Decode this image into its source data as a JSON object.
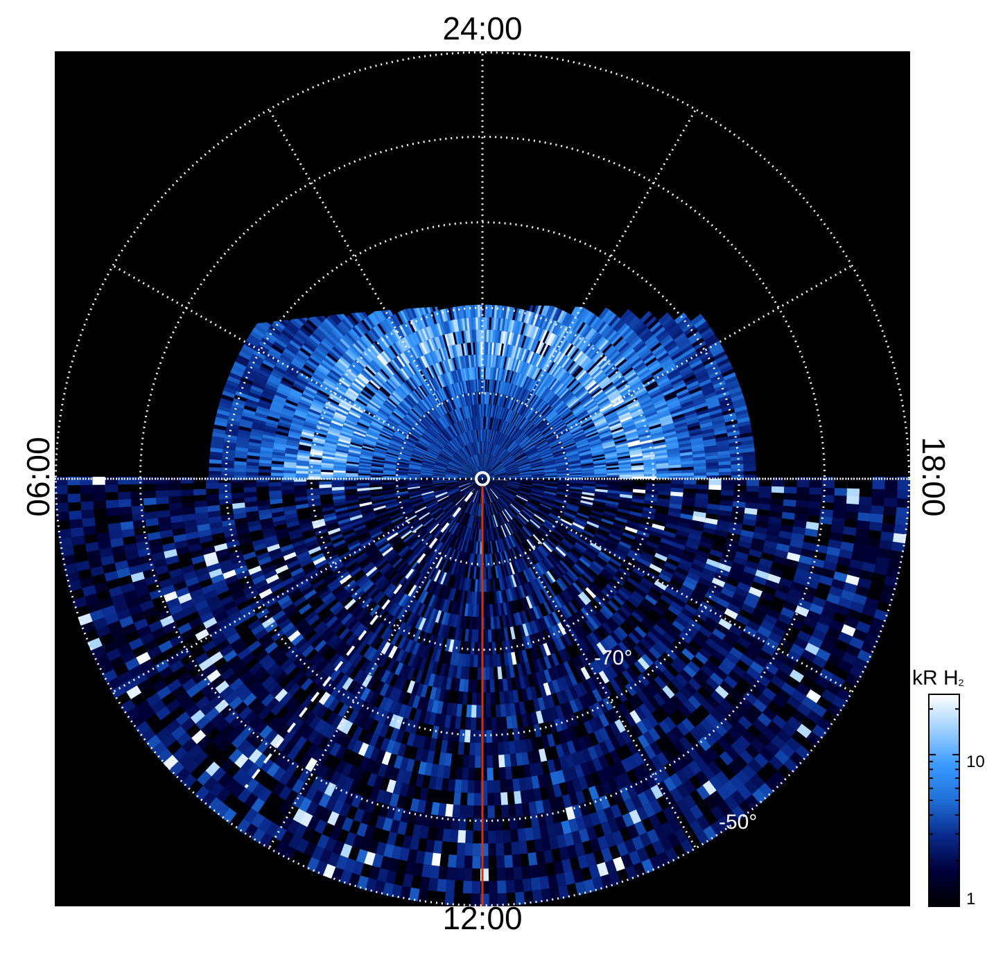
{
  "chart_data": {
    "type": "heatmap",
    "projection": "polar (southern hemisphere, magnetic local time vs latitude)",
    "local_time_labels": {
      "top": "24:00",
      "bottom": "12:00",
      "left": "06:00",
      "right": "18:00"
    },
    "latitude_labels": [
      "-70°",
      "-50°"
    ],
    "latitude_circles_deg": [
      -80,
      -70,
      -60,
      -50,
      -40
    ],
    "colorbar": {
      "title": "kR H",
      "title_subscript": "2",
      "scale": "log",
      "range": [
        1,
        25
      ],
      "ticks": [
        {
          "value": 10,
          "label": "10"
        },
        {
          "value": 1,
          "label": "1"
        }
      ],
      "colormap": [
        "#000000",
        "#00003a",
        "#0a2a8c",
        "#1f6fd8",
        "#3a9aff",
        "#9fd0ff",
        "#ffffff"
      ]
    },
    "highlights": {
      "solid_line_mlt": "12:00",
      "solid_line_color": "#cc3311",
      "dashed_line_mlt_hours": 9.5
    },
    "emission_band": "bright auroral oval in nightside/dusk sector between about -70° and -80° latitude"
  }
}
